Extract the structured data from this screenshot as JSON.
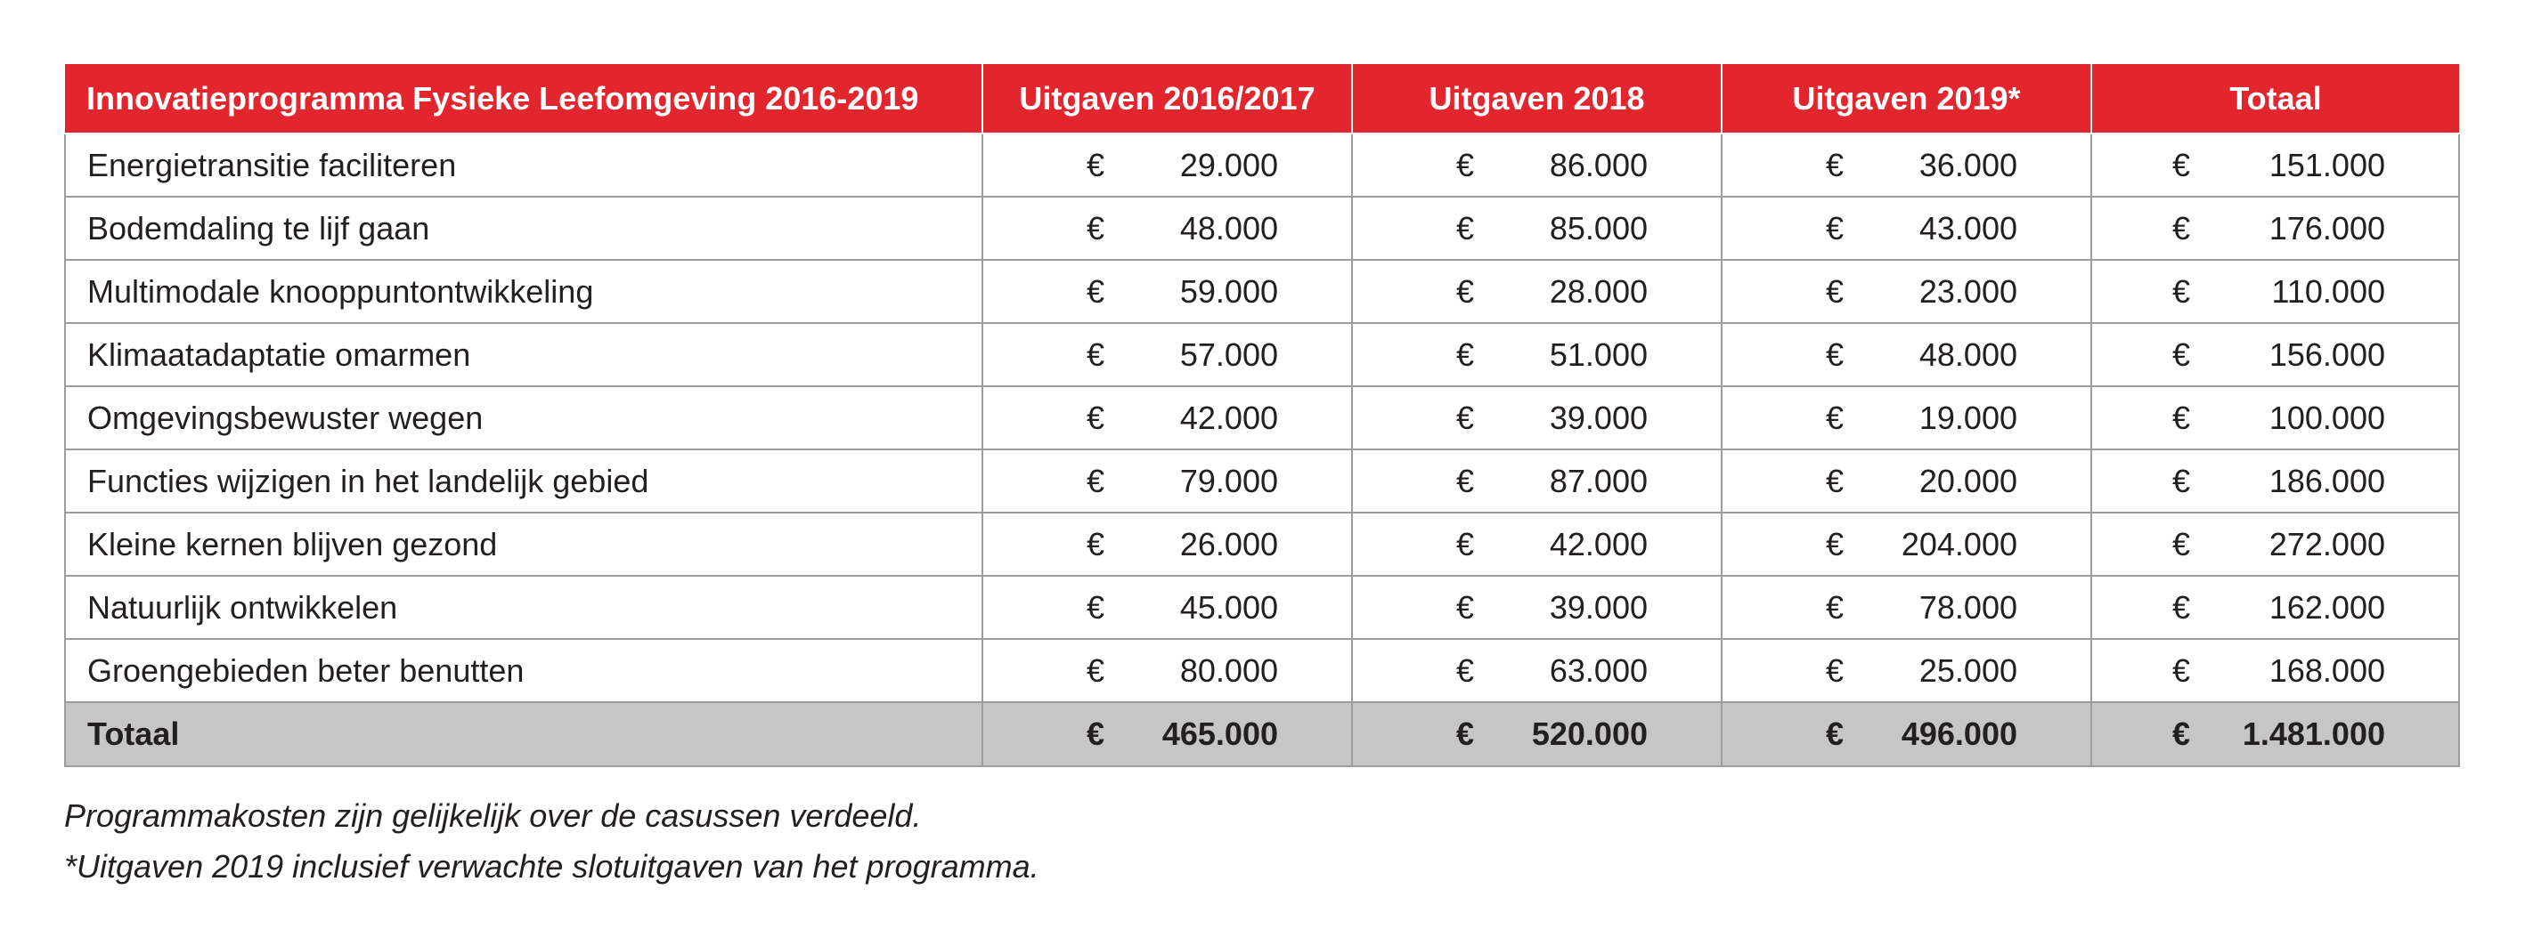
{
  "table": {
    "headers": [
      "Innovatieprogramma Fysieke Leefomgeving 2016-2019",
      "Uitgaven 2016/2017",
      "Uitgaven 2018",
      "Uitgaven 2019*",
      "Totaal"
    ],
    "currency": "€",
    "rows": [
      {
        "label": "Energietransitie faciliteren",
        "values": [
          "29.000",
          "86.000",
          "36.000",
          "151.000"
        ]
      },
      {
        "label": "Bodemdaling te lijf gaan",
        "values": [
          "48.000",
          "85.000",
          "43.000",
          "176.000"
        ]
      },
      {
        "label": "Multimodale knooppuntontwikkeling",
        "values": [
          "59.000",
          "28.000",
          "23.000",
          "110.000"
        ]
      },
      {
        "label": "Klimaatadaptatie omarmen",
        "values": [
          "57.000",
          "51.000",
          "48.000",
          "156.000"
        ]
      },
      {
        "label": "Omgevingsbewuster wegen",
        "values": [
          "42.000",
          "39.000",
          "19.000",
          "100.000"
        ]
      },
      {
        "label": "Functies wijzigen in het landelijk gebied",
        "values": [
          "79.000",
          "87.000",
          "20.000",
          "186.000"
        ]
      },
      {
        "label": "Kleine kernen blijven gezond",
        "values": [
          "26.000",
          "42.000",
          "204.000",
          "272.000"
        ]
      },
      {
        "label": "Natuurlijk ontwikkelen",
        "values": [
          "45.000",
          "39.000",
          "78.000",
          "162.000"
        ]
      },
      {
        "label": "Groengebieden beter benutten",
        "values": [
          "80.000",
          "63.000",
          "25.000",
          "168.000"
        ]
      }
    ],
    "total": {
      "label": "Totaal",
      "values": [
        "465.000",
        "520.000",
        "496.000",
        "1.481.000"
      ]
    }
  },
  "notes": [
    "Programmakosten zijn gelijkelijk over de casussen verdeeld.",
    "*Uitgaven 2019 inclusief verwachte slotuitgaven van het programma."
  ],
  "colors": {
    "header_bg": "#e3252e",
    "header_text": "#ffffff",
    "total_bg": "#c6c6c6",
    "grid": "#9d9d9c"
  }
}
